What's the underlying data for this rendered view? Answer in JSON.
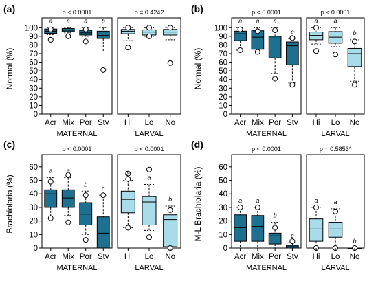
{
  "colors": {
    "maternal": "#1E7090",
    "larval": "#A8DCEA",
    "stroke": "#000000"
  },
  "chart_data": [
    {
      "type": "box",
      "panel_label": "(a)",
      "ylabel": "Normal (%)",
      "ylim": [
        0,
        105
      ],
      "yticks": [
        0,
        10,
        20,
        30,
        40,
        50,
        60,
        70,
        80,
        90,
        100
      ],
      "groups": [
        {
          "name": "MATERNAL",
          "p_text": "p < 0.0001",
          "color": "#1E7090",
          "categories": [
            "Acr",
            "Mix",
            "Por",
            "Stv"
          ],
          "letters": [
            "a",
            "a",
            "a",
            "b"
          ],
          "boxes": [
            {
              "low": 92,
              "q1": 93.5,
              "median": 96,
              "q3": 98.5,
              "high": 100,
              "outliers": [
                86,
                98
              ]
            },
            {
              "low": 94,
              "q1": 95.5,
              "median": 97,
              "q3": 99,
              "high": 100,
              "outliers": [
                90
              ]
            },
            {
              "low": 90,
              "q1": 91.5,
              "median": 94,
              "q3": 97,
              "high": 100,
              "outliers": [
                84,
                98
              ]
            },
            {
              "low": 72,
              "q1": 87.5,
              "median": 91,
              "q3": 96,
              "high": 100,
              "outliers": [
                51
              ]
            }
          ]
        },
        {
          "name": "LARVAL",
          "p_text": "p = 0.4242",
          "color": "#A8DCEA",
          "categories": [
            "Hi",
            "Lo",
            "No"
          ],
          "letters": [
            "",
            "",
            ""
          ],
          "boxes": [
            {
              "low": 85,
              "q1": 93,
              "median": 96,
              "q3": 98,
              "high": 100,
              "outliers": [
                77,
                100
              ]
            },
            {
              "low": 90,
              "q1": 91.5,
              "median": 95,
              "q3": 97.5,
              "high": 100,
              "outliers": [
                90,
                100
              ]
            },
            {
              "low": 86,
              "q1": 91.5,
              "median": 95,
              "q3": 98,
              "high": 100,
              "outliers": [
                59,
                100
              ]
            }
          ]
        }
      ]
    },
    {
      "type": "box",
      "panel_label": "(b)",
      "ylabel": "Normal (%)",
      "ylim": [
        0,
        105
      ],
      "yticks": [
        0,
        10,
        20,
        30,
        40,
        50,
        60,
        70,
        80,
        90,
        100
      ],
      "groups": [
        {
          "name": "MATERNAL",
          "p_text": "p < 0.0001",
          "color": "#1E7090",
          "categories": [
            "Acr",
            "Mix",
            "Por",
            "Stv"
          ],
          "letters": [
            "a",
            "a",
            "a",
            "c"
          ],
          "boxes": [
            {
              "low": 74,
              "q1": 85,
              "median": 93,
              "q3": 96,
              "high": 100,
              "outliers": [
                74,
                98
              ]
            },
            {
              "low": 72,
              "q1": 75,
              "median": 89,
              "q3": 96.5,
              "high": 100,
              "outliers": [
                72,
                96
              ]
            },
            {
              "low": 47,
              "q1": 65,
              "median": 88,
              "q3": 90,
              "high": 100,
              "outliers": [
                41,
                97
              ]
            },
            {
              "low": 36,
              "q1": 57,
              "median": 79,
              "q3": 83.5,
              "high": 87,
              "outliers": [
                34,
                88
              ]
            }
          ]
        },
        {
          "name": "LARVAL",
          "p_text": "p < 0.0001",
          "color": "#A8DCEA",
          "categories": [
            "Hi",
            "Lo",
            "No"
          ],
          "letters": [
            "a",
            "a",
            "b"
          ],
          "boxes": [
            {
              "low": 81,
              "q1": 86,
              "median": 91,
              "q3": 95,
              "high": 100,
              "outliers": [
                73,
                100
              ]
            },
            {
              "low": 78,
              "q1": 82,
              "median": 89,
              "q3": 95.5,
              "high": 100,
              "outliers": [
                69
              ]
            },
            {
              "low": 38,
              "q1": 55,
              "median": 70,
              "q3": 76,
              "high": 86,
              "outliers": [
                34,
                84
              ]
            }
          ]
        }
      ]
    },
    {
      "type": "box",
      "panel_label": "(c)",
      "ylabel": "Brachiolaria (%)",
      "ylim": [
        0,
        65
      ],
      "yticks": [
        0,
        10,
        20,
        30,
        40,
        50,
        60
      ],
      "groups": [
        {
          "name": "MATERNAL",
          "p_text": "p < 0.0001",
          "color": "#1E7090",
          "categories": [
            "Acr",
            "Mix",
            "Por",
            "Stv"
          ],
          "letters": [
            "a",
            "a",
            "b",
            "c"
          ],
          "boxes": [
            {
              "low": 22,
              "q1": 30,
              "median": 40,
              "q3": 43,
              "high": 52,
              "outliers": [
                22,
                49
              ]
            },
            {
              "low": 24,
              "q1": 30,
              "median": 37,
              "q3": 43,
              "high": 52,
              "outliers": [
                19,
                54
              ]
            },
            {
              "low": 10,
              "q1": 17,
              "median": 25,
              "q3": 33.5,
              "high": 42,
              "outliers": [
                6,
                39
              ]
            },
            {
              "low": 0,
              "q1": 0,
              "median": 11,
              "q3": 23,
              "high": 39,
              "outliers": [
                39
              ]
            }
          ]
        },
        {
          "name": "LARVAL",
          "p_text": "p < 0.0001",
          "color": "#A8DCEA",
          "categories": [
            "Hi",
            "Lo",
            "No"
          ],
          "letters": [
            "a",
            "a",
            "b"
          ],
          "boxes": [
            {
              "low": 15,
              "q1": 26,
              "median": 36,
              "q3": 42,
              "high": 50,
              "outliers": [
                15,
                51,
                55
              ]
            },
            {
              "low": 13,
              "q1": 17,
              "median": 34,
              "q3": 38,
              "high": 47,
              "outliers": [
                8,
                58
              ]
            },
            {
              "low": 0,
              "q1": 1,
              "median": 21,
              "q3": 24.5,
              "high": 31,
              "outliers": [
                0,
                28
              ]
            }
          ]
        }
      ]
    },
    {
      "type": "box",
      "panel_label": "(d)",
      "ylabel": "M-L Brachiolaria (%)",
      "ylim": [
        0,
        65
      ],
      "yticks": [
        0,
        10,
        20,
        30,
        40,
        50,
        60
      ],
      "groups": [
        {
          "name": "MATERNAL",
          "p_text": "p < 0.0001",
          "color": "#1E7090",
          "categories": [
            "Acr",
            "Mix",
            "Por",
            "Stv"
          ],
          "letters": [
            "a",
            "a",
            "b",
            "c"
          ],
          "boxes": [
            {
              "low": 0,
              "q1": 5,
              "median": 15,
              "q3": 24.5,
              "high": 30,
              "outliers": [
                30
              ]
            },
            {
              "low": 0,
              "q1": 5,
              "median": 16,
              "q3": 24,
              "high": 30,
              "outliers": [
                30
              ]
            },
            {
              "low": 0,
              "q1": 3,
              "median": 9,
              "q3": 11,
              "high": 19,
              "outliers": [
                15
              ]
            },
            {
              "low": 0,
              "q1": 0,
              "median": 1,
              "q3": 2,
              "high": 4,
              "outliers": [
                5
              ]
            }
          ]
        },
        {
          "name": "LARVAL",
          "p_text": "p = 0.5853*",
          "color": "#A8DCEA",
          "categories": [
            "Hi",
            "Lo",
            "No"
          ],
          "letters": [
            "a",
            "a",
            "b"
          ],
          "boxes": [
            {
              "low": 0,
              "q1": 5,
              "median": 14,
              "q3": 21.5,
              "high": 30,
              "outliers": [
                0,
                30
              ]
            },
            {
              "low": 0,
              "q1": 8,
              "median": 14,
              "q3": 19,
              "high": 29,
              "outliers": [
                0,
                27
              ]
            },
            {
              "low": 0,
              "q1": 0,
              "median": 0,
              "q3": 0,
              "high": 0,
              "outliers": [
                0
              ]
            }
          ]
        }
      ]
    }
  ]
}
